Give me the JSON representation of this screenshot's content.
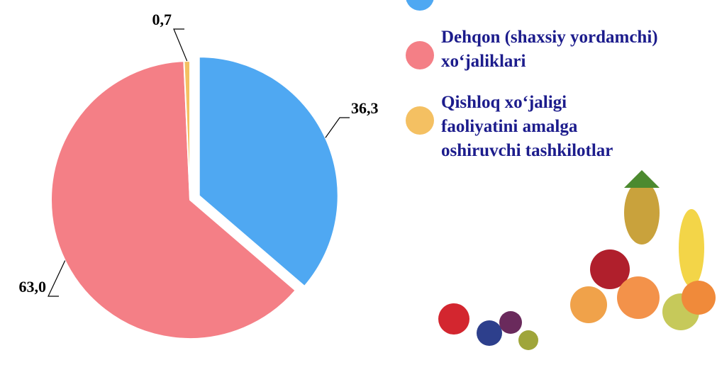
{
  "chart_data": {
    "type": "pie",
    "categories": [
      null,
      "Dehqon (shaxsiy yordamchi) xo‘jaliklari",
      "Qishloq xo‘jaligi faoliyatini amalga oshiruvchi tashkilotlar"
    ],
    "values": [
      36.3,
      63.0,
      0.7
    ],
    "value_labels": [
      "36,3",
      "63,0",
      "0,7"
    ],
    "colors": [
      "#4fa8f2",
      "#f47f86",
      "#f4c062"
    ]
  }
}
